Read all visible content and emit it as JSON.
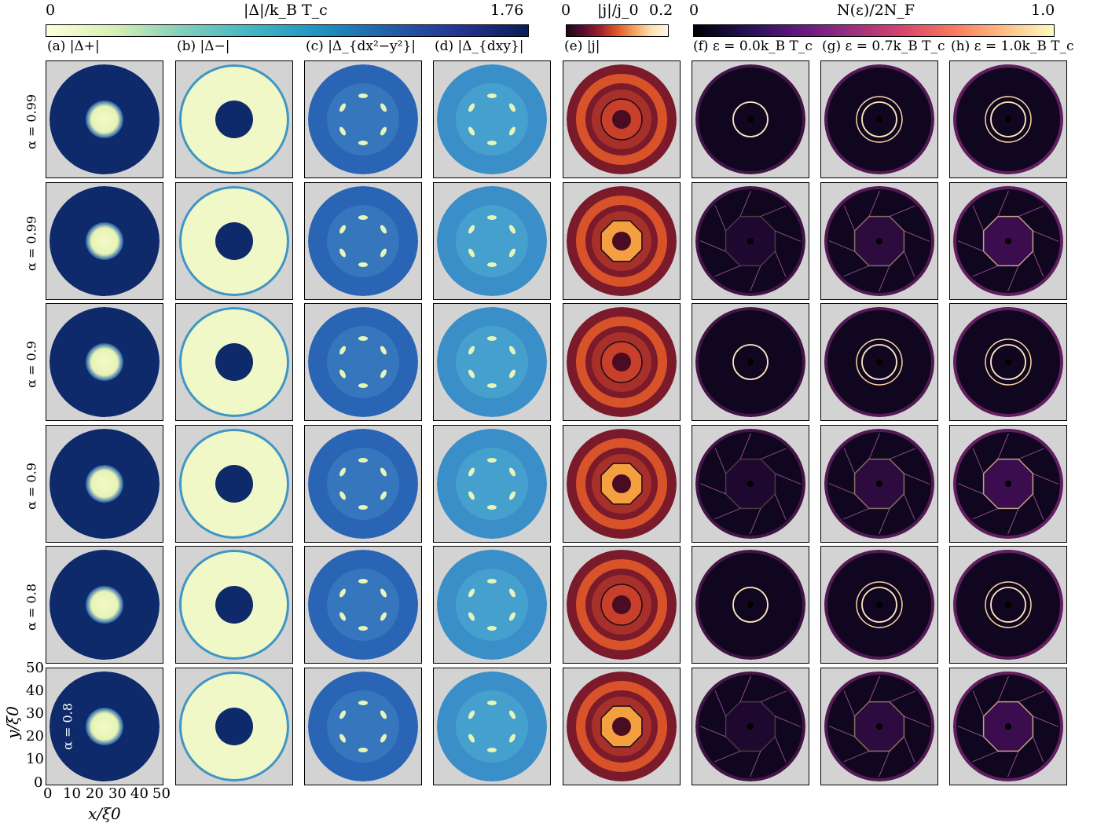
{
  "colorbars": [
    {
      "min": "0",
      "max": "1.76",
      "label": "|Δ|/k_B T_c",
      "map": "deep"
    },
    {
      "min": "0",
      "max": "0.2",
      "label": "|j|/j_0",
      "map": "inferno"
    },
    {
      "min": "0",
      "max": "1.0",
      "label": "N(ε)/2N_F",
      "map": "magma"
    }
  ],
  "column_titles": [
    "(a) |Δ+|",
    "(b) |Δ−|",
    "(c) |Δ_{dx²−y²}|",
    "(d) |Δ_{dxy}|",
    "(e) |j|",
    "(f) ε = 0.0k_B T_c",
    "(g) ε = 0.7k_B T_c",
    "(h) ε = 1.0k_B T_c"
  ],
  "row_labels": [
    "α = 0.99",
    "α = 0.99",
    "α = 0.9",
    "α = 0.9",
    "α = 0.8",
    "α = 0.8"
  ],
  "axes": {
    "xlabel": "x/ξ0",
    "ylabel": "y/ξ0",
    "ticks": [
      "0",
      "10",
      "20",
      "30",
      "40",
      "50"
    ]
  }
}
